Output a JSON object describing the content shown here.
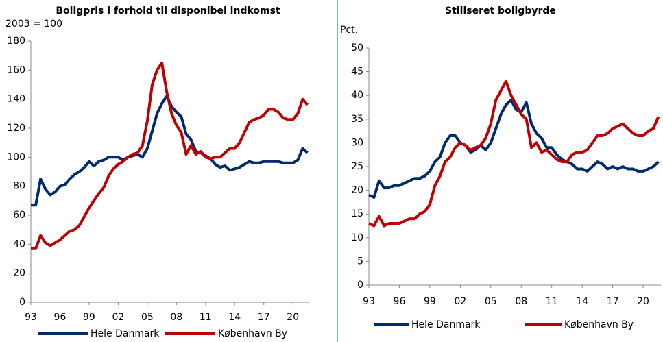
{
  "chart_data": [
    {
      "type": "line",
      "title": "Boligpris i forhold til disponibel indkomst",
      "y_label": "2003 = 100",
      "x": [
        1993,
        1993.5,
        1994,
        1994.5,
        1995,
        1995.5,
        1996,
        1996.5,
        1997,
        1997.5,
        1998,
        1998.5,
        1999,
        1999.5,
        2000,
        2000.5,
        2001,
        2001.5,
        2002,
        2002.5,
        2003,
        2003.5,
        2004,
        2004.5,
        2005,
        2005.5,
        2006,
        2006.5,
        2007,
        2007.5,
        2008,
        2008.5,
        2009,
        2009.5,
        2010,
        2010.5,
        2011,
        2011.5,
        2012,
        2012.5,
        2013,
        2013.5,
        2014,
        2014.5,
        2015,
        2015.5,
        2016,
        2016.5,
        2017,
        2017.5,
        2018,
        2018.5,
        2019,
        2019.5,
        2020,
        2020.5,
        2021,
        2021.5
      ],
      "xlim": [
        1993,
        2021.75
      ],
      "xticks": [
        {
          "value": 1993,
          "label": "93"
        },
        {
          "value": 1996,
          "label": "96"
        },
        {
          "value": 1999,
          "label": "99"
        },
        {
          "value": 2002,
          "label": "02"
        },
        {
          "value": 2005,
          "label": "05"
        },
        {
          "value": 2008,
          "label": "08"
        },
        {
          "value": 2011,
          "label": "11"
        },
        {
          "value": 2014,
          "label": "14"
        },
        {
          "value": 2017,
          "label": "17"
        },
        {
          "value": 2020,
          "label": "20"
        }
      ],
      "ylim": [
        0,
        180
      ],
      "yticks": [
        0,
        20,
        40,
        60,
        80,
        100,
        120,
        140,
        160,
        180
      ],
      "series": [
        {
          "name": "Hele Danmark",
          "color": "#002a6c",
          "values": [
            67,
            67,
            85,
            78,
            74,
            76,
            80,
            81,
            85,
            88,
            90,
            93,
            97,
            94,
            97,
            98,
            100,
            100,
            100,
            98,
            100,
            101,
            102,
            100,
            106,
            118,
            130,
            137,
            142,
            135,
            131,
            128,
            116,
            112,
            104,
            103,
            101,
            99,
            95,
            93,
            94,
            91,
            92,
            93,
            95,
            97,
            96,
            96,
            97,
            97,
            97,
            97,
            96,
            96,
            96,
            98,
            106,
            103
          ]
        },
        {
          "name": "København By",
          "color": "#c00000",
          "values": [
            37,
            37,
            46,
            41,
            39,
            41,
            43,
            46,
            49,
            50,
            53,
            59,
            65,
            70,
            75,
            79,
            87,
            92,
            95,
            97,
            100,
            102,
            103,
            108,
            125,
            150,
            160,
            165,
            145,
            130,
            122,
            117,
            102,
            108,
            102,
            104,
            100,
            99,
            100,
            100,
            103,
            106,
            106,
            110,
            117,
            124,
            126,
            127,
            129,
            133,
            133,
            131,
            127,
            126,
            126,
            130,
            140,
            136
          ]
        }
      ]
    },
    {
      "type": "line",
      "title": "Stiliseret boligbyrde",
      "y_label": "Pct.",
      "x": [
        1993,
        1993.5,
        1994,
        1994.5,
        1995,
        1995.5,
        1996,
        1996.5,
        1997,
        1997.5,
        1998,
        1998.5,
        1999,
        1999.5,
        2000,
        2000.5,
        2001,
        2001.5,
        2002,
        2002.5,
        2003,
        2003.5,
        2004,
        2004.5,
        2005,
        2005.5,
        2006,
        2006.5,
        2007,
        2007.5,
        2008,
        2008.5,
        2009,
        2009.5,
        2010,
        2010.5,
        2011,
        2011.5,
        2012,
        2012.5,
        2013,
        2013.5,
        2014,
        2014.5,
        2015,
        2015.5,
        2016,
        2016.5,
        2017,
        2017.5,
        2018,
        2018.5,
        2019,
        2019.5,
        2020,
        2020.5,
        2021,
        2021.5
      ],
      "xlim": [
        1993,
        2021.75
      ],
      "xticks": [
        {
          "value": 1993,
          "label": "93"
        },
        {
          "value": 1996,
          "label": "96"
        },
        {
          "value": 1999,
          "label": "99"
        },
        {
          "value": 2002,
          "label": "02"
        },
        {
          "value": 2005,
          "label": "05"
        },
        {
          "value": 2008,
          "label": "08"
        },
        {
          "value": 2011,
          "label": "11"
        },
        {
          "value": 2014,
          "label": "14"
        },
        {
          "value": 2017,
          "label": "17"
        },
        {
          "value": 2020,
          "label": "20"
        }
      ],
      "ylim": [
        0,
        50
      ],
      "yticks": [
        0,
        5,
        10,
        15,
        20,
        25,
        30,
        35,
        40,
        45,
        50
      ],
      "series": [
        {
          "name": "Hele Danmark",
          "color": "#002a6c",
          "values": [
            19,
            18.5,
            22,
            20.5,
            20.5,
            21,
            21,
            21.5,
            22,
            22.5,
            22.5,
            23,
            24,
            26,
            27,
            30,
            31.5,
            31.5,
            30,
            29.5,
            28,
            28.5,
            29.5,
            28.5,
            30,
            33,
            36,
            38,
            39,
            37,
            36.5,
            38.5,
            34,
            32,
            31,
            29,
            29,
            27.5,
            26.5,
            26,
            25.5,
            24.5,
            24.5,
            24,
            25,
            26,
            25.5,
            24.5,
            25,
            24.5,
            25,
            24.5,
            24.5,
            24,
            24,
            24.5,
            25,
            26
          ]
        },
        {
          "name": "København By",
          "color": "#c00000",
          "values": [
            13,
            12.5,
            14.5,
            12.5,
            13,
            13,
            13,
            13.5,
            14,
            14,
            15,
            15.5,
            17,
            21,
            23,
            26,
            27,
            29,
            30,
            29.5,
            28.5,
            29,
            29.5,
            31,
            34,
            39,
            41,
            43,
            40,
            38,
            36,
            35,
            29,
            30,
            28,
            28.5,
            27.5,
            26.5,
            26,
            26,
            27.5,
            28,
            28,
            28.5,
            30,
            31.5,
            31.5,
            32,
            33,
            33.5,
            34,
            33,
            32,
            31.5,
            31.5,
            32.5,
            33,
            35.5
          ]
        }
      ]
    }
  ]
}
